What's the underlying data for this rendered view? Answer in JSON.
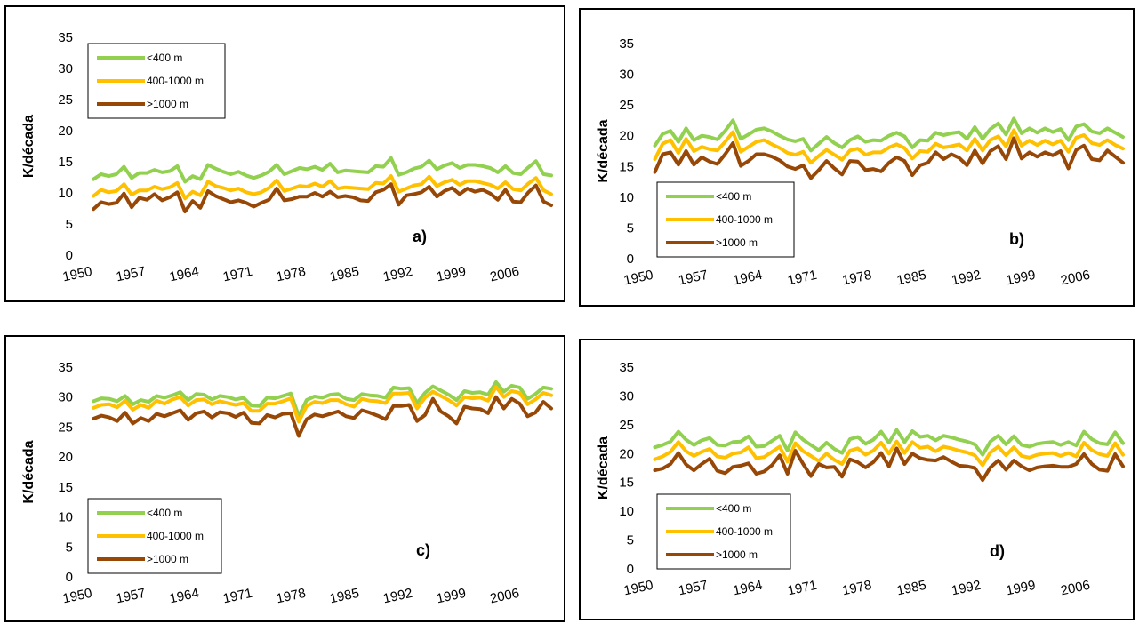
{
  "chart_data": [
    {
      "type": "line",
      "panel_label": "a)",
      "ylabel": "K/década",
      "ylim": [
        0,
        35
      ],
      "yticks": [
        0,
        5,
        10,
        15,
        20,
        25,
        30,
        35
      ],
      "x_start": 1952,
      "x_end": 2012,
      "xtick_labels": [
        "1950",
        "1957",
        "1964",
        "1971",
        "1978",
        "1985",
        "1992",
        "1999",
        "2006"
      ],
      "legend_placement": "top-left",
      "series": [
        {
          "name": "<400 m",
          "color": "#92d050",
          "values": [
            12.2,
            13,
            12.7,
            13,
            14.2,
            12.4,
            13.2,
            13.2,
            13.7,
            13.3,
            13.5,
            14.3,
            11.8,
            12.7,
            12.2,
            14.5,
            13.9,
            13.4,
            13,
            13.4,
            12.8,
            12.4,
            12.8,
            13.4,
            14.5,
            13,
            13.5,
            14,
            13.8,
            14.2,
            13.7,
            14.7,
            13.3,
            13.6,
            13.5,
            13.4,
            13.3,
            14.3,
            14.2,
            15.6,
            12.9,
            13.3,
            13.9,
            14.2,
            15.2,
            13.8,
            14.4,
            14.8,
            14,
            14.5,
            14.5,
            14.3,
            14,
            13.3,
            14.3,
            13.2,
            13,
            14.1,
            15.1,
            13,
            12.8
          ]
        },
        {
          "name": "400-1000 m",
          "color": "#ffc000",
          "values": [
            9.5,
            10.5,
            10.1,
            10.3,
            11.4,
            9.7,
            10.4,
            10.4,
            11,
            10.6,
            10.9,
            11.6,
            9.1,
            10.2,
            9.6,
            11.8,
            11.1,
            10.8,
            10.4,
            10.7,
            10.1,
            9.8,
            10.1,
            10.8,
            12,
            10.3,
            10.7,
            11.1,
            11,
            11.5,
            11,
            11.9,
            10.7,
            10.9,
            10.8,
            10.7,
            10.6,
            11.6,
            11.5,
            12.7,
            10.2,
            10.7,
            11.2,
            11.4,
            12.6,
            11.1,
            11.7,
            12.1,
            11.3,
            11.9,
            11.9,
            11.6,
            11.3,
            10.7,
            11.7,
            10.6,
            10.4,
            11.5,
            12.4,
            10.4,
            9.8
          ]
        },
        {
          "name": ">1000 m",
          "color": "#974706",
          "values": [
            7.4,
            8.5,
            8.2,
            8.4,
            9.9,
            7.7,
            9.2,
            8.9,
            9.8,
            8.8,
            9.3,
            10.1,
            7,
            8.7,
            7.6,
            10.3,
            9.5,
            9,
            8.5,
            8.8,
            8.4,
            7.8,
            8.4,
            8.9,
            10.7,
            8.8,
            9,
            9.4,
            9.4,
            10,
            9.4,
            10.2,
            9.3,
            9.5,
            9.3,
            8.8,
            8.7,
            10.1,
            10.5,
            11.4,
            8.1,
            9.6,
            9.8,
            10.1,
            11,
            9.4,
            10.3,
            10.8,
            9.8,
            10.7,
            10.2,
            10.5,
            9.9,
            8.9,
            10.5,
            8.6,
            8.5,
            10.1,
            11.2,
            8.6,
            8
          ]
        }
      ]
    },
    {
      "type": "line",
      "panel_label": "b)",
      "ylabel": "K/década",
      "ylim": [
        0,
        35
      ],
      "yticks": [
        0,
        5,
        10,
        15,
        20,
        25,
        30,
        35
      ],
      "x_start": 1952,
      "x_end": 2012,
      "xtick_labels": [
        "1950",
        "1957",
        "1964",
        "1971",
        "1978",
        "1985",
        "1992",
        "1999",
        "2006"
      ],
      "legend_placement": "bottom-left",
      "series": [
        {
          "name": "<400 m",
          "color": "#92d050",
          "values": [
            18.4,
            20.3,
            20.8,
            19,
            21.2,
            19.3,
            20,
            19.8,
            19.4,
            20.8,
            22.5,
            19.5,
            20.2,
            21,
            21.2,
            20.7,
            20,
            19.4,
            19.1,
            19.5,
            17.6,
            18.7,
            19.8,
            18.8,
            18.1,
            19.3,
            19.9,
            19,
            19.3,
            19.2,
            20,
            20.5,
            19.9,
            18.1,
            19.3,
            19.2,
            20.5,
            20.1,
            20.4,
            20.6,
            19.5,
            21.4,
            19.5,
            21.1,
            22,
            20.2,
            22.8,
            20.4,
            21.2,
            20.5,
            21.2,
            20.6,
            21.1,
            19.3,
            21.5,
            21.9,
            20.7,
            20.4,
            21.2,
            20.5,
            19.8
          ]
        },
        {
          "name": "400-1000 m",
          "color": "#ffc000",
          "values": [
            16.2,
            18.7,
            19.3,
            17.2,
            19.5,
            17.5,
            18.2,
            17.8,
            17.6,
            19,
            20.6,
            17.4,
            18.2,
            19,
            19.3,
            18.6,
            18,
            17.2,
            16.9,
            17.4,
            15.6,
            16.7,
            17.7,
            16.9,
            16.1,
            17.6,
            17.9,
            16.9,
            17.3,
            17.3,
            18.1,
            18.6,
            18,
            16.3,
            17.5,
            17.4,
            18.7,
            18.1,
            18.3,
            18.6,
            17.6,
            19.5,
            17.6,
            19.3,
            19.9,
            18.3,
            20.9,
            18.4,
            19.2,
            18.5,
            19.2,
            18.6,
            19.2,
            17.4,
            19.7,
            20.1,
            18.8,
            18.5,
            19.3,
            18.5,
            17.9
          ]
        },
        {
          "name": ">1000 m",
          "color": "#974706",
          "values": [
            14.1,
            17,
            17.3,
            15.3,
            17.5,
            15.3,
            16.5,
            15.8,
            15.4,
            17,
            18.8,
            15.1,
            15.9,
            17,
            17,
            16.6,
            16,
            15,
            14.6,
            15.2,
            13.1,
            14.4,
            15.9,
            14.7,
            13.7,
            15.9,
            15.8,
            14.4,
            14.6,
            14.2,
            15.6,
            16.5,
            15.9,
            13.6,
            15.2,
            15.6,
            17.3,
            16.2,
            17,
            16.4,
            15.2,
            17.6,
            15.5,
            17.5,
            18.3,
            16.2,
            19.6,
            16.3,
            17.3,
            16.6,
            17.3,
            16.8,
            17.5,
            14.7,
            17.7,
            18.4,
            16.2,
            16,
            17.6,
            16.6,
            15.6
          ]
        }
      ]
    },
    {
      "type": "line",
      "panel_label": "c)",
      "ylabel": "K/década",
      "ylim": [
        0,
        35
      ],
      "yticks": [
        0,
        5,
        10,
        15,
        20,
        25,
        30,
        35
      ],
      "x_start": 1952,
      "x_end": 2012,
      "xtick_labels": [
        "1950",
        "1957",
        "1964",
        "1971",
        "1978",
        "1985",
        "1992",
        "1999",
        "2006"
      ],
      "legend_placement": "bottom-left",
      "series": [
        {
          "name": "<400 m",
          "color": "#92d050",
          "values": [
            29.3,
            29.8,
            29.7,
            29.3,
            30.2,
            28.8,
            29.5,
            29.2,
            30.2,
            29.9,
            30.3,
            30.8,
            29.5,
            30.5,
            30.4,
            29.6,
            30.2,
            30,
            29.6,
            29.9,
            28.6,
            28.5,
            29.9,
            29.8,
            30.2,
            30.6,
            26.8,
            29.5,
            30.1,
            29.9,
            30.4,
            30.5,
            29.7,
            29.5,
            30.5,
            30.3,
            30.2,
            29.9,
            31.6,
            31.4,
            31.5,
            29,
            30.7,
            31.8,
            31.1,
            30.4,
            29.5,
            31,
            30.7,
            30.8,
            30.4,
            32.5,
            30.9,
            31.9,
            31.6,
            29.7,
            30.5,
            31.6,
            31.4
          ]
        },
        {
          "name": "400-1000 m",
          "color": "#ffc000",
          "values": [
            28.2,
            28.7,
            28.8,
            28.3,
            29.4,
            27.9,
            28.7,
            28.2,
            29.4,
            28.9,
            29.6,
            30,
            28.6,
            29.5,
            29.6,
            28.8,
            29.3,
            29,
            28.7,
            29,
            27.7,
            27.7,
            28.9,
            28.9,
            29.3,
            29.8,
            25.9,
            28.5,
            29.2,
            29,
            29.5,
            29.5,
            28.8,
            28.4,
            29.7,
            29.4,
            29.3,
            29,
            30.6,
            30.6,
            30.7,
            28.1,
            29.9,
            30.9,
            30.2,
            29.5,
            28.6,
            30,
            29.8,
            29.9,
            29.4,
            31.7,
            30,
            31,
            30.7,
            28.8,
            29.6,
            30.7,
            30.3
          ]
        },
        {
          "name": ">1000 m",
          "color": "#974706",
          "values": [
            26.4,
            26.9,
            26.6,
            26,
            27.4,
            25.6,
            26.5,
            26,
            27.2,
            26.8,
            27.3,
            27.8,
            26.2,
            27.3,
            27.6,
            26.6,
            27.5,
            27.3,
            26.7,
            27.4,
            25.7,
            25.6,
            27,
            26.6,
            27.2,
            27.3,
            23.5,
            26.3,
            27.1,
            26.8,
            27.2,
            27.6,
            26.8,
            26.5,
            27.8,
            27.4,
            26.9,
            26.3,
            28.5,
            28.5,
            28.7,
            26,
            27,
            29.7,
            27.6,
            26.8,
            25.6,
            28.4,
            28.1,
            28,
            27.3,
            30,
            28.1,
            29.7,
            28.9,
            26.8,
            27.4,
            29.2,
            28.1
          ]
        }
      ]
    },
    {
      "type": "line",
      "panel_label": "d)",
      "ylabel": "K/década",
      "ylim": [
        0,
        35
      ],
      "yticks": [
        0,
        5,
        10,
        15,
        20,
        25,
        30,
        35
      ],
      "x_start": 1952,
      "x_end": 2012,
      "xtick_labels": [
        "1950",
        "1957",
        "1964",
        "1971",
        "1978",
        "1985",
        "1992",
        "1999",
        "2006"
      ],
      "legend_placement": "bottom-left",
      "series": [
        {
          "name": "<400 m",
          "color": "#92d050",
          "values": [
            21.1,
            21.5,
            22.1,
            23.8,
            22.4,
            21.5,
            22.3,
            22.7,
            21.5,
            21.4,
            22,
            22.1,
            23,
            21.2,
            21.3,
            22.2,
            23.1,
            20.5,
            23.7,
            22.4,
            21.5,
            20.6,
            21.9,
            20.8,
            20.1,
            22.5,
            22.9,
            21.7,
            22.4,
            23.8,
            21.9,
            24.1,
            22,
            23.9,
            22.9,
            23.1,
            22.3,
            23.1,
            22.8,
            22.4,
            22.1,
            21.6,
            19.8,
            22.1,
            23.1,
            21.6,
            23,
            21.5,
            21.2,
            21.7,
            21.9,
            22,
            21.5,
            22,
            21.4,
            23.8,
            22.5,
            21.8,
            21.6,
            23.7,
            21.8
          ]
        },
        {
          "name": "400-1000 m",
          "color": "#ffc000",
          "values": [
            19,
            19.5,
            20.3,
            22,
            20.4,
            19.6,
            20.3,
            20.8,
            19.5,
            19.3,
            20,
            20.2,
            21.1,
            19.2,
            19.4,
            20.3,
            21.2,
            18.6,
            21.8,
            20.4,
            19.6,
            18.7,
            20,
            18.9,
            18.2,
            20.5,
            20.9,
            19.8,
            20.5,
            21.9,
            20,
            22.1,
            20.1,
            22,
            21,
            21.2,
            20.4,
            21.2,
            20.9,
            20.5,
            20.2,
            19.7,
            18,
            20.2,
            21.2,
            19.7,
            21.1,
            19.6,
            19.3,
            19.8,
            20,
            20.1,
            19.6,
            20.1,
            19.5,
            21.9,
            20.6,
            19.9,
            19.6,
            21.8,
            19.8
          ]
        },
        {
          "name": ">1000 m",
          "color": "#974706",
          "values": [
            17.1,
            17.4,
            18.2,
            20.1,
            18.1,
            17.1,
            18.2,
            19.1,
            17,
            16.6,
            17.7,
            17.9,
            18.3,
            16.5,
            16.9,
            18,
            19.7,
            16.5,
            20.5,
            18.2,
            16.1,
            18.2,
            17.6,
            17.7,
            16,
            19,
            18.5,
            17.6,
            18.5,
            20.1,
            17.8,
            20.9,
            18.2,
            20,
            19.2,
            18.9,
            18.8,
            19.4,
            18.6,
            17.9,
            17.8,
            17.5,
            15.4,
            17.6,
            18.8,
            17.2,
            18.8,
            17.8,
            17.1,
            17.6,
            17.8,
            17.9,
            17.7,
            17.7,
            18.2,
            19.9,
            18.2,
            17.2,
            17,
            19.9,
            17.8
          ]
        }
      ]
    }
  ]
}
